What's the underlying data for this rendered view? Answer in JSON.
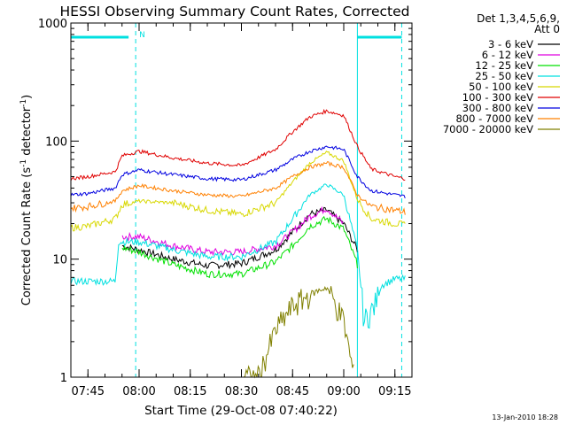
{
  "chart_data": {
    "type": "line",
    "title": "HESSI Observing Summary Count Rates, Corrected",
    "xlabel": "Start Time (29-Oct-08 07:40:22)",
    "ylabel_prefix": "Corrected Count Rate (s",
    "ylabel_sup1": "-1",
    "ylabel_mid": " detector",
    "ylabel_sup2": "-1",
    "ylabel_suffix": ")",
    "y_scale": "log",
    "ylim": [
      1,
      1000
    ],
    "xlim_minutes": [
      0,
      100
    ],
    "x_tick_minutes": [
      5,
      20,
      35,
      50,
      65,
      80,
      95
    ],
    "x_tick_labels": [
      "07:45",
      "08:00",
      "08:15",
      "08:30",
      "08:45",
      "09:00",
      "09:15"
    ],
    "y_tick_values": [
      1,
      10,
      100,
      1000
    ],
    "y_tick_labels": [
      "1",
      "10",
      "100",
      "1000"
    ],
    "legend_header": [
      "Det 1,3,4,5,6,9,",
      "Att 0"
    ],
    "legend_placement": "right",
    "footer_date": "13-Jan-2010 18:28",
    "annotation_N": "N",
    "night_interval_minutes": [
      0,
      19
    ],
    "saa_interval_minutes": [
      84,
      97
    ],
    "series": [
      {
        "name": "3 - 6 keV",
        "color": "#000000",
        "x": [
          0,
          13,
          15,
          20,
          30,
          40,
          50,
          60,
          65,
          70,
          75,
          80,
          84
        ],
        "y": [
          null,
          null,
          13,
          12,
          10,
          8.8,
          9.2,
          12,
          17,
          24,
          26,
          20,
          12
        ]
      },
      {
        "name": "6 - 12 keV",
        "color": "#e000e0",
        "x": [
          13,
          15,
          20,
          30,
          40,
          50,
          60,
          65,
          70,
          75,
          80
        ],
        "y": [
          null,
          15.5,
          15.5,
          13,
          11.5,
          11.5,
          13,
          17,
          23,
          27,
          20
        ]
      },
      {
        "name": "12 - 25 keV",
        "color": "#00e000",
        "x": [
          0,
          13,
          15,
          20,
          30,
          40,
          50,
          60,
          65,
          70,
          75,
          80,
          84
        ],
        "y": [
          null,
          null,
          12.5,
          11.5,
          9,
          7.5,
          7.5,
          9.5,
          13,
          19,
          22,
          18,
          9
        ]
      },
      {
        "name": "25 - 50 keV",
        "color": "#00e0e0",
        "x": [
          0,
          5,
          10,
          13,
          14,
          15,
          20,
          30,
          40,
          50,
          60,
          65,
          70,
          75,
          80,
          84,
          86,
          89,
          91,
          95,
          98
        ],
        "y": [
          6.5,
          6.5,
          6.5,
          6.5,
          14,
          14,
          14,
          12,
          10.5,
          10.5,
          14,
          22,
          35,
          43,
          35,
          12,
          3,
          4,
          6,
          6.8,
          6.8
        ]
      },
      {
        "name": "50 - 100 keV",
        "color": "#d8d800",
        "x": [
          0,
          5,
          13,
          15,
          20,
          30,
          40,
          50,
          60,
          65,
          70,
          75,
          80,
          84,
          88,
          95,
          98
        ],
        "y": [
          18.5,
          19,
          22,
          29,
          31,
          30,
          26,
          24,
          30,
          45,
          65,
          80,
          68,
          32,
          22,
          20,
          19.5
        ]
      },
      {
        "name": "100 - 300 keV",
        "color": "#e00000",
        "x": [
          0,
          5,
          13,
          15,
          20,
          30,
          40,
          50,
          60,
          65,
          70,
          75,
          80,
          84,
          88,
          95,
          98
        ],
        "y": [
          48,
          50,
          55,
          75,
          82,
          72,
          65,
          62,
          85,
          120,
          160,
          180,
          165,
          90,
          58,
          50,
          48
        ]
      },
      {
        "name": "300 - 800 keV",
        "color": "#0000e0",
        "x": [
          0,
          5,
          13,
          15,
          20,
          30,
          40,
          50,
          60,
          65,
          70,
          75,
          80,
          84,
          88,
          95,
          98
        ],
        "y": [
          35,
          36,
          40,
          52,
          57,
          52,
          48,
          47,
          57,
          70,
          82,
          90,
          85,
          50,
          38,
          35,
          34
        ]
      },
      {
        "name": "800 - 7000 keV",
        "color": "#ff8000",
        "x": [
          0,
          5,
          13,
          15,
          20,
          30,
          40,
          50,
          60,
          65,
          70,
          75,
          80,
          84,
          88,
          95,
          98
        ],
        "y": [
          27,
          28,
          31,
          38,
          42,
          38,
          35,
          34,
          40,
          50,
          60,
          65,
          60,
          35,
          28,
          26,
          25
        ]
      },
      {
        "name": "7000 - 20000 keV",
        "color": "#808000",
        "x": [
          50,
          55,
          60,
          65,
          70,
          75,
          80,
          83
        ],
        "y": [
          1,
          1,
          2.5,
          4,
          5,
          5.8,
          3,
          1
        ]
      }
    ]
  }
}
